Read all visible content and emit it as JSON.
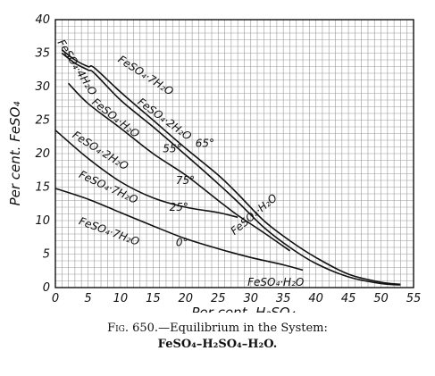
{
  "figure": {
    "caption_prefix": "Fig. 650.",
    "caption_title": "—Equilibrium in the System:",
    "caption_system": "FeSO₄–H₂SO₄–H₂O."
  },
  "chart_data": {
    "type": "line",
    "title": "",
    "xlabel": "Per cent. H₂SO₄",
    "ylabel": "Per cent. FeSO₄",
    "xlim": [
      0,
      55
    ],
    "ylim": [
      0,
      40
    ],
    "xticks": [
      0,
      5,
      10,
      15,
      20,
      25,
      30,
      35,
      40,
      45,
      50,
      55
    ],
    "yticks": [
      0,
      5,
      10,
      15,
      20,
      25,
      30,
      35,
      40
    ],
    "grid": true,
    "series": [
      {
        "name": "65°",
        "points": [
          [
            1,
            35.5
          ],
          [
            3,
            34
          ],
          [
            5,
            33
          ],
          [
            6,
            32.8
          ],
          [
            10,
            29.2
          ],
          [
            15,
            25
          ],
          [
            20,
            20.8
          ],
          [
            25,
            16.8
          ],
          [
            28,
            14
          ],
          [
            32,
            10
          ],
          [
            36,
            7
          ],
          [
            40,
            4.5
          ],
          [
            45,
            2
          ],
          [
            50,
            0.8
          ],
          [
            53,
            0.5
          ]
        ]
      },
      {
        "name": "55°",
        "points": [
          [
            1,
            35
          ],
          [
            3,
            33.5
          ],
          [
            5,
            32.5
          ],
          [
            6,
            32
          ],
          [
            10,
            28
          ],
          [
            15,
            24
          ],
          [
            20,
            19.8
          ],
          [
            25,
            15.5
          ],
          [
            28,
            12.8
          ],
          [
            32,
            9
          ],
          [
            36,
            6
          ],
          [
            40,
            3.6
          ],
          [
            45,
            1.6
          ],
          [
            50,
            0.6
          ],
          [
            53,
            0.4
          ]
        ]
      },
      {
        "name": "75°",
        "points": [
          [
            2,
            30.5
          ],
          [
            5,
            27.5
          ],
          [
            10,
            23.8
          ],
          [
            15,
            20
          ],
          [
            20,
            16.8
          ],
          [
            25,
            13
          ],
          [
            28,
            10.8
          ],
          [
            32,
            8.2
          ],
          [
            36,
            5.5
          ]
        ]
      },
      {
        "name": "25°",
        "points": [
          [
            0,
            23.5
          ],
          [
            5,
            19.3
          ],
          [
            10,
            15.8
          ],
          [
            15,
            13.4
          ],
          [
            20,
            12
          ],
          [
            25,
            11.2
          ],
          [
            28,
            10.5
          ]
        ]
      },
      {
        "name": "0°",
        "points": [
          [
            0,
            14.8
          ],
          [
            5,
            13.2
          ],
          [
            10,
            11.2
          ],
          [
            15,
            9.2
          ],
          [
            20,
            7.3
          ],
          [
            25,
            5.8
          ],
          [
            30,
            4.5
          ],
          [
            35,
            3.4
          ],
          [
            38,
            2.6
          ]
        ]
      }
    ],
    "annotations": [
      {
        "text": "FeSO₄·4H₂O",
        "x": 0.3,
        "y": 36.6,
        "rotate": 58
      },
      {
        "text": "FeSO₄·7H₂O",
        "x": 9.5,
        "y": 33.8,
        "rotate": 33
      },
      {
        "text": "FeSO₄·2H₂O",
        "x": 12.5,
        "y": 27.5,
        "rotate": 36
      },
      {
        "text": "FeSO₄·H₂O",
        "x": 5.5,
        "y": 27.5,
        "rotate": 38
      },
      {
        "text": "FeSO₄·2H₂O",
        "x": 2.5,
        "y": 22.5,
        "rotate": 32
      },
      {
        "text": "FeSO₄·7H₂O",
        "x": 3.5,
        "y": 16.5,
        "rotate": 25
      },
      {
        "text": "FeSO₄·7H₂O",
        "x": 3.5,
        "y": 9.5,
        "rotate": 20
      },
      {
        "text": "FeSO₄·H₂O",
        "x": 27.5,
        "y": 7.8,
        "rotate": -40
      },
      {
        "text": "FeSO₄·H₂O",
        "x": 29.5,
        "y": 0.3,
        "rotate": 0
      }
    ],
    "temperature_labels": [
      {
        "text": "65°",
        "x": 21.5,
        "y": 21.0
      },
      {
        "text": "55°",
        "x": 16.5,
        "y": 20.2
      },
      {
        "text": "75°",
        "x": 18.5,
        "y": 15.5
      },
      {
        "text": "25°",
        "x": 17.5,
        "y": 11.5
      },
      {
        "text": "0°",
        "x": 18.5,
        "y": 6.2
      }
    ]
  }
}
